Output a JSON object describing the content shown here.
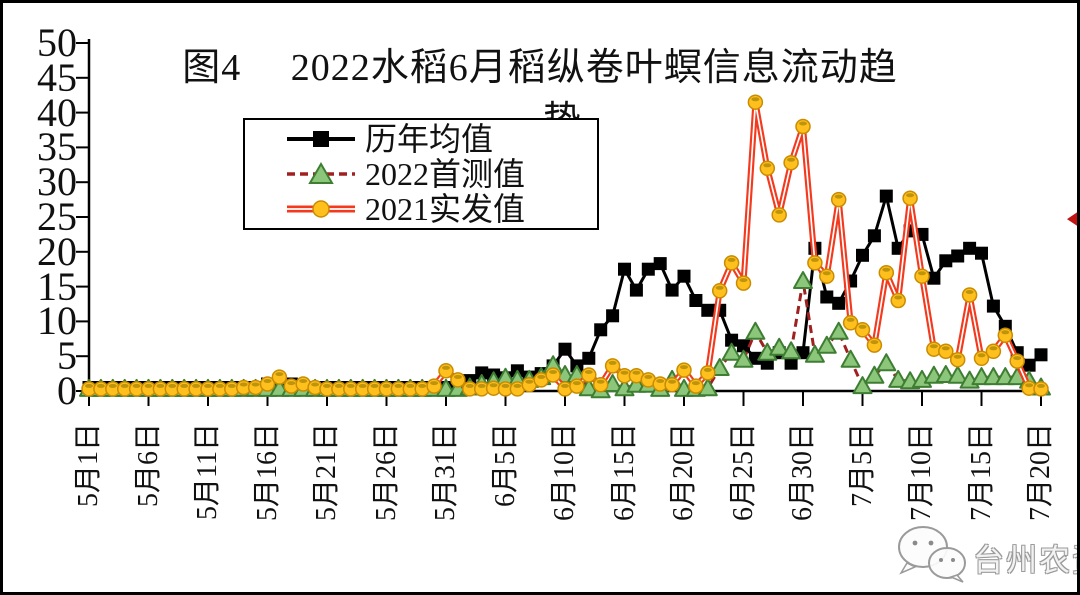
{
  "title": {
    "line1": "图4　 2022水稻6月稻纵卷叶螟信息流动趋",
    "line2": "势",
    "full": "图4 2022水稻6月稻纵卷叶螟信息流动趋势"
  },
  "watermark": {
    "text": "台州农资",
    "icon": "wechat-icon"
  },
  "chart_data": {
    "type": "line",
    "title": "图4 2022水稻6月稻纵卷叶螟信息流动趋势",
    "xlabel": "",
    "ylabel": "",
    "ylim": [
      0,
      50
    ],
    "yticks": [
      0,
      5,
      10,
      15,
      20,
      25,
      30,
      35,
      40,
      45,
      50
    ],
    "grid": false,
    "legend_position": "inside-top-left",
    "x_tick_labels": [
      "5月1日",
      "5月6日",
      "5月11日",
      "5月16日",
      "5月21日",
      "5月26日",
      "5月31日",
      "6月5日",
      "6月10日",
      "6月15日",
      "6月20日",
      "6月25日",
      "6月30日",
      "7月5日",
      "7月10日",
      "7月15日",
      "7月20日"
    ],
    "categories": [
      "5月1日",
      "5月2日",
      "5月3日",
      "5月4日",
      "5月5日",
      "5月6日",
      "5月7日",
      "5月8日",
      "5月9日",
      "5月10日",
      "5月11日",
      "5月12日",
      "5月13日",
      "5月14日",
      "5月15日",
      "5月16日",
      "5月17日",
      "5月18日",
      "5月19日",
      "5月20日",
      "5月21日",
      "5月22日",
      "5月23日",
      "5月24日",
      "5月25日",
      "5月26日",
      "5月27日",
      "5月28日",
      "5月29日",
      "5月30日",
      "5月31日",
      "6月1日",
      "6月2日",
      "6月3日",
      "6月4日",
      "6月5日",
      "6月6日",
      "6月7日",
      "6月8日",
      "6月9日",
      "6月10日",
      "6月11日",
      "6月12日",
      "6月13日",
      "6月14日",
      "6月15日",
      "6月16日",
      "6月17日",
      "6月18日",
      "6月19日",
      "6月20日",
      "6月21日",
      "6月22日",
      "6月23日",
      "6月24日",
      "6月25日",
      "6月26日",
      "6月27日",
      "6月28日",
      "6月29日",
      "6月30日",
      "7月1日",
      "7月2日",
      "7月3日",
      "7月4日",
      "7月5日",
      "7月6日",
      "7月7日",
      "7月8日",
      "7月9日",
      "7月10日",
      "7月11日",
      "7月12日",
      "7月13日",
      "7月14日",
      "7月15日",
      "7月16日",
      "7月17日",
      "7月18日",
      "7月19日",
      "7月20日"
    ],
    "series": [
      {
        "name": "历年均值",
        "marker": "square",
        "line_style": "solid",
        "line_color": "#000000",
        "marker_color": "#000000",
        "marker_edge": "#000000",
        "values": [
          0.5,
          0.5,
          0.5,
          0.5,
          0.5,
          0.5,
          0.5,
          0.5,
          0.5,
          0.5,
          0.5,
          0.5,
          0.5,
          0.5,
          0.5,
          1,
          1,
          1,
          0.5,
          0.5,
          0.5,
          0.5,
          0.5,
          0.5,
          0.5,
          0.5,
          0.5,
          0.5,
          0.5,
          0.5,
          0.5,
          1,
          1.5,
          2.6,
          2.3,
          1.9,
          2.9,
          2,
          2.5,
          3.6,
          6,
          3.6,
          4.7,
          8.8,
          10.8,
          17.5,
          14.5,
          17.5,
          18.3,
          14.5,
          16.5,
          13,
          11.6,
          11.6,
          7.3,
          6.5,
          4.7,
          4,
          5.5,
          4,
          5.5,
          20.5,
          13.5,
          12.6,
          15.8,
          19.5,
          22.3,
          28,
          20.5,
          23,
          22.5,
          16.2,
          18.7,
          19.4,
          20.5,
          19.8,
          12.2,
          9.3,
          5.5,
          3.7,
          5.2
        ]
      },
      {
        "name": "2022首测值",
        "marker": "triangle",
        "line_style": "dashed",
        "line_color": "#A02020",
        "marker_color": "#8CC67A",
        "marker_edge": "#3E7E33",
        "values": [
          0.3,
          0.3,
          0.3,
          0.3,
          0.3,
          0.3,
          0.3,
          0.3,
          0.3,
          0.3,
          0.3,
          0.3,
          0.3,
          0.3,
          0.3,
          0.3,
          0.3,
          0.3,
          0.3,
          0.3,
          0.3,
          0.3,
          0.3,
          0.3,
          0.3,
          0.3,
          0.3,
          0.3,
          0.3,
          0.3,
          0.3,
          0.3,
          0.5,
          1,
          1.4,
          1.9,
          1.6,
          1.6,
          2,
          3.7,
          2.3,
          2.3,
          0.4,
          0.1,
          1,
          0.4,
          0.9,
          0.9,
          0.3,
          1.6,
          0.3,
          0.3,
          0.4,
          3.3,
          5.5,
          4.5,
          8.5,
          5.5,
          6.2,
          5.7,
          15.8,
          5.2,
          6.5,
          8.5,
          4.5,
          0.7,
          2.2,
          4,
          1.6,
          1.4,
          1.6,
          2.2,
          2.3,
          2.2,
          1.5,
          2,
          2,
          2,
          2,
          1.5,
          0.5
        ]
      },
      {
        "name": "2021实发值",
        "marker": "circle",
        "line_style": "solid-double",
        "line_color": "#F43A1E",
        "line_core_color": "#FFFFFF",
        "marker_color": "#FFC01E",
        "marker_edge": "#C98C00",
        "values": [
          0.3,
          0.3,
          0.3,
          0.3,
          0.3,
          0.3,
          0.3,
          0.3,
          0.3,
          0.3,
          0.3,
          0.3,
          0.3,
          0.5,
          0.5,
          1,
          2,
          0.7,
          1,
          0.5,
          0.3,
          0.3,
          0.3,
          0.3,
          0.3,
          0.3,
          0.3,
          0.3,
          0.3,
          0.7,
          2.9,
          1.6,
          0.3,
          0.3,
          0.4,
          0.3,
          0.3,
          0.9,
          1.6,
          2.3,
          0.3,
          0.7,
          2.3,
          0.9,
          3.6,
          2.2,
          2.2,
          1.6,
          1,
          0.9,
          3,
          0.7,
          2.6,
          14.4,
          18.4,
          15.5,
          41.5,
          32,
          25.3,
          32.8,
          38,
          18.4,
          16.5,
          27.5,
          9.8,
          8.8,
          6.6,
          17,
          13,
          27.7,
          16.5,
          6,
          5.7,
          4.5,
          13.8,
          4.7,
          5.7,
          8,
          4.3,
          0.4,
          0.3
        ]
      }
    ],
    "annotations": [
      {
        "type": "arrowhead-left",
        "position": "right-edge",
        "y_value": 24.7,
        "color": "#C11414"
      }
    ]
  }
}
